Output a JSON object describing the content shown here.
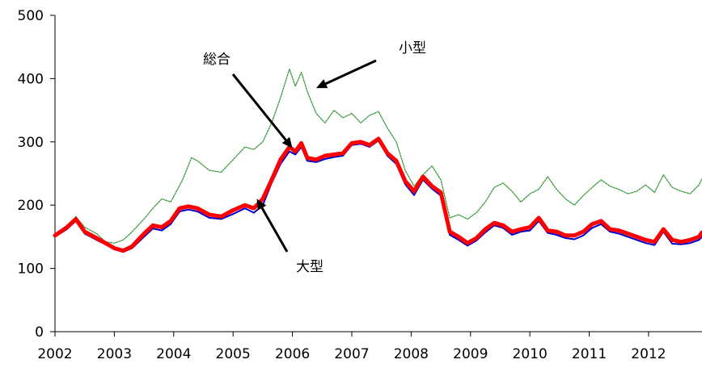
{
  "chart_data": {
    "type": "line",
    "title": "",
    "xlabel": "",
    "ylabel": "",
    "xlim": [
      2002,
      2012.9
    ],
    "ylim": [
      0,
      500
    ],
    "y_ticks": [
      0,
      100,
      200,
      300,
      400,
      500
    ],
    "x_ticks": [
      2002,
      2003,
      2004,
      2005,
      2006,
      2007,
      2008,
      2009,
      2010,
      2011,
      2012
    ],
    "y_tick_labels": [
      "0",
      "100",
      "200",
      "300",
      "400",
      "500"
    ],
    "x_tick_labels": [
      "2002",
      "2003",
      "2004",
      "2005",
      "2006",
      "2007",
      "2008",
      "2009",
      "2010",
      "2011",
      "2012"
    ],
    "grid": false,
    "legend": "none",
    "series": [
      {
        "name": "小型",
        "color": "#3a9a3a",
        "x": [
          2002.0,
          2002.2,
          2002.35,
          2002.5,
          2002.7,
          2002.85,
          2003.0,
          2003.15,
          2003.3,
          2003.5,
          2003.65,
          2003.8,
          2003.95,
          2004.15,
          2004.3,
          2004.4,
          2004.6,
          2004.8,
          2005.0,
          2005.2,
          2005.35,
          2005.5,
          2005.65,
          2005.8,
          2005.95,
          2006.05,
          2006.15,
          2006.25,
          2006.4,
          2006.55,
          2006.7,
          2006.85,
          2007.0,
          2007.15,
          2007.3,
          2007.45,
          2007.6,
          2007.75,
          2007.9,
          2008.05,
          2008.2,
          2008.35,
          2008.5,
          2008.65,
          2008.8,
          2008.95,
          2009.1,
          2009.25,
          2009.4,
          2009.55,
          2009.7,
          2009.85,
          2010.0,
          2010.15,
          2010.3,
          2010.45,
          2010.6,
          2010.75,
          2010.9,
          2011.05,
          2011.2,
          2011.35,
          2011.5,
          2011.65,
          2011.8,
          2011.95,
          2012.1,
          2012.25,
          2012.4,
          2012.55,
          2012.7,
          2012.85,
          2012.9
        ],
        "values": [
          152,
          162,
          182,
          165,
          155,
          142,
          140,
          145,
          158,
          178,
          195,
          210,
          205,
          240,
          275,
          270,
          255,
          252,
          272,
          292,
          288,
          300,
          330,
          370,
          415,
          388,
          410,
          380,
          345,
          330,
          350,
          338,
          345,
          330,
          342,
          348,
          322,
          300,
          255,
          230,
          248,
          262,
          240,
          180,
          185,
          178,
          188,
          205,
          228,
          235,
          222,
          205,
          218,
          225,
          245,
          225,
          210,
          200,
          215,
          228,
          240,
          230,
          225,
          218,
          222,
          232,
          220,
          248,
          228,
          222,
          218,
          232,
          242
        ]
      },
      {
        "name": "総合",
        "color": "#ff0000",
        "x": [
          2002.0,
          2002.2,
          2002.35,
          2002.5,
          2002.7,
          2002.85,
          2003.0,
          2003.15,
          2003.3,
          2003.5,
          2003.65,
          2003.8,
          2003.95,
          2004.1,
          2004.25,
          2004.4,
          2004.6,
          2004.8,
          2005.0,
          2005.2,
          2005.35,
          2005.5,
          2005.65,
          2005.8,
          2005.95,
          2006.05,
          2006.15,
          2006.25,
          2006.4,
          2006.55,
          2006.7,
          2006.85,
          2007.0,
          2007.15,
          2007.3,
          2007.45,
          2007.6,
          2007.75,
          2007.9,
          2008.05,
          2008.2,
          2008.35,
          2008.5,
          2008.65,
          2008.8,
          2008.95,
          2009.1,
          2009.25,
          2009.4,
          2009.55,
          2009.7,
          2009.85,
          2010.0,
          2010.15,
          2010.3,
          2010.45,
          2010.6,
          2010.75,
          2010.9,
          2011.05,
          2011.2,
          2011.35,
          2011.5,
          2011.65,
          2011.8,
          2011.95,
          2012.1,
          2012.25,
          2012.4,
          2012.55,
          2012.7,
          2012.85,
          2012.9
        ],
        "values": [
          152,
          165,
          178,
          158,
          148,
          140,
          132,
          128,
          135,
          155,
          168,
          165,
          175,
          195,
          198,
          195,
          185,
          182,
          192,
          200,
          195,
          210,
          240,
          272,
          292,
          285,
          298,
          275,
          272,
          278,
          280,
          282,
          298,
          300,
          295,
          305,
          282,
          270,
          238,
          222,
          245,
          230,
          220,
          158,
          150,
          140,
          148,
          162,
          172,
          168,
          158,
          162,
          165,
          180,
          160,
          158,
          152,
          152,
          158,
          170,
          175,
          162,
          160,
          155,
          150,
          145,
          142,
          162,
          145,
          142,
          145,
          150,
          157
        ]
      },
      {
        "name": "大型",
        "color": "#0000cc",
        "x": [
          2002.0,
          2002.2,
          2002.35,
          2002.5,
          2002.7,
          2002.85,
          2003.0,
          2003.15,
          2003.3,
          2003.5,
          2003.65,
          2003.8,
          2003.95,
          2004.1,
          2004.25,
          2004.4,
          2004.6,
          2004.8,
          2005.0,
          2005.2,
          2005.35,
          2005.5,
          2005.65,
          2005.8,
          2005.95,
          2006.05,
          2006.15,
          2006.25,
          2006.4,
          2006.55,
          2006.7,
          2006.85,
          2007.0,
          2007.15,
          2007.3,
          2007.45,
          2007.6,
          2007.75,
          2007.9,
          2008.05,
          2008.2,
          2008.35,
          2008.5,
          2008.65,
          2008.8,
          2008.95,
          2009.1,
          2009.25,
          2009.4,
          2009.55,
          2009.7,
          2009.85,
          2010.0,
          2010.15,
          2010.3,
          2010.45,
          2010.6,
          2010.75,
          2010.9,
          2011.05,
          2011.2,
          2011.35,
          2011.5,
          2011.65,
          2011.8,
          2011.95,
          2012.1,
          2012.25,
          2012.4,
          2012.55,
          2012.7,
          2012.85,
          2012.9
        ],
        "values": [
          150,
          162,
          175,
          155,
          145,
          138,
          130,
          126,
          132,
          150,
          163,
          160,
          170,
          190,
          193,
          190,
          180,
          178,
          186,
          195,
          188,
          200,
          235,
          265,
          285,
          280,
          292,
          270,
          268,
          273,
          276,
          278,
          295,
          297,
          292,
          302,
          278,
          265,
          233,
          216,
          240,
          226,
          215,
          153,
          145,
          136,
          144,
          157,
          168,
          164,
          153,
          158,
          160,
          175,
          156,
          153,
          148,
          146,
          152,
          164,
          170,
          158,
          155,
          150,
          145,
          140,
          137,
          158,
          139,
          138,
          140,
          145,
          150
        ]
      }
    ],
    "annotations": [
      {
        "text": "総合",
        "target": [
          2006.0,
          290
        ]
      },
      {
        "text": "小型",
        "target": [
          2006.4,
          385
        ]
      },
      {
        "text": "大型",
        "target": [
          2005.4,
          210
        ]
      }
    ]
  }
}
